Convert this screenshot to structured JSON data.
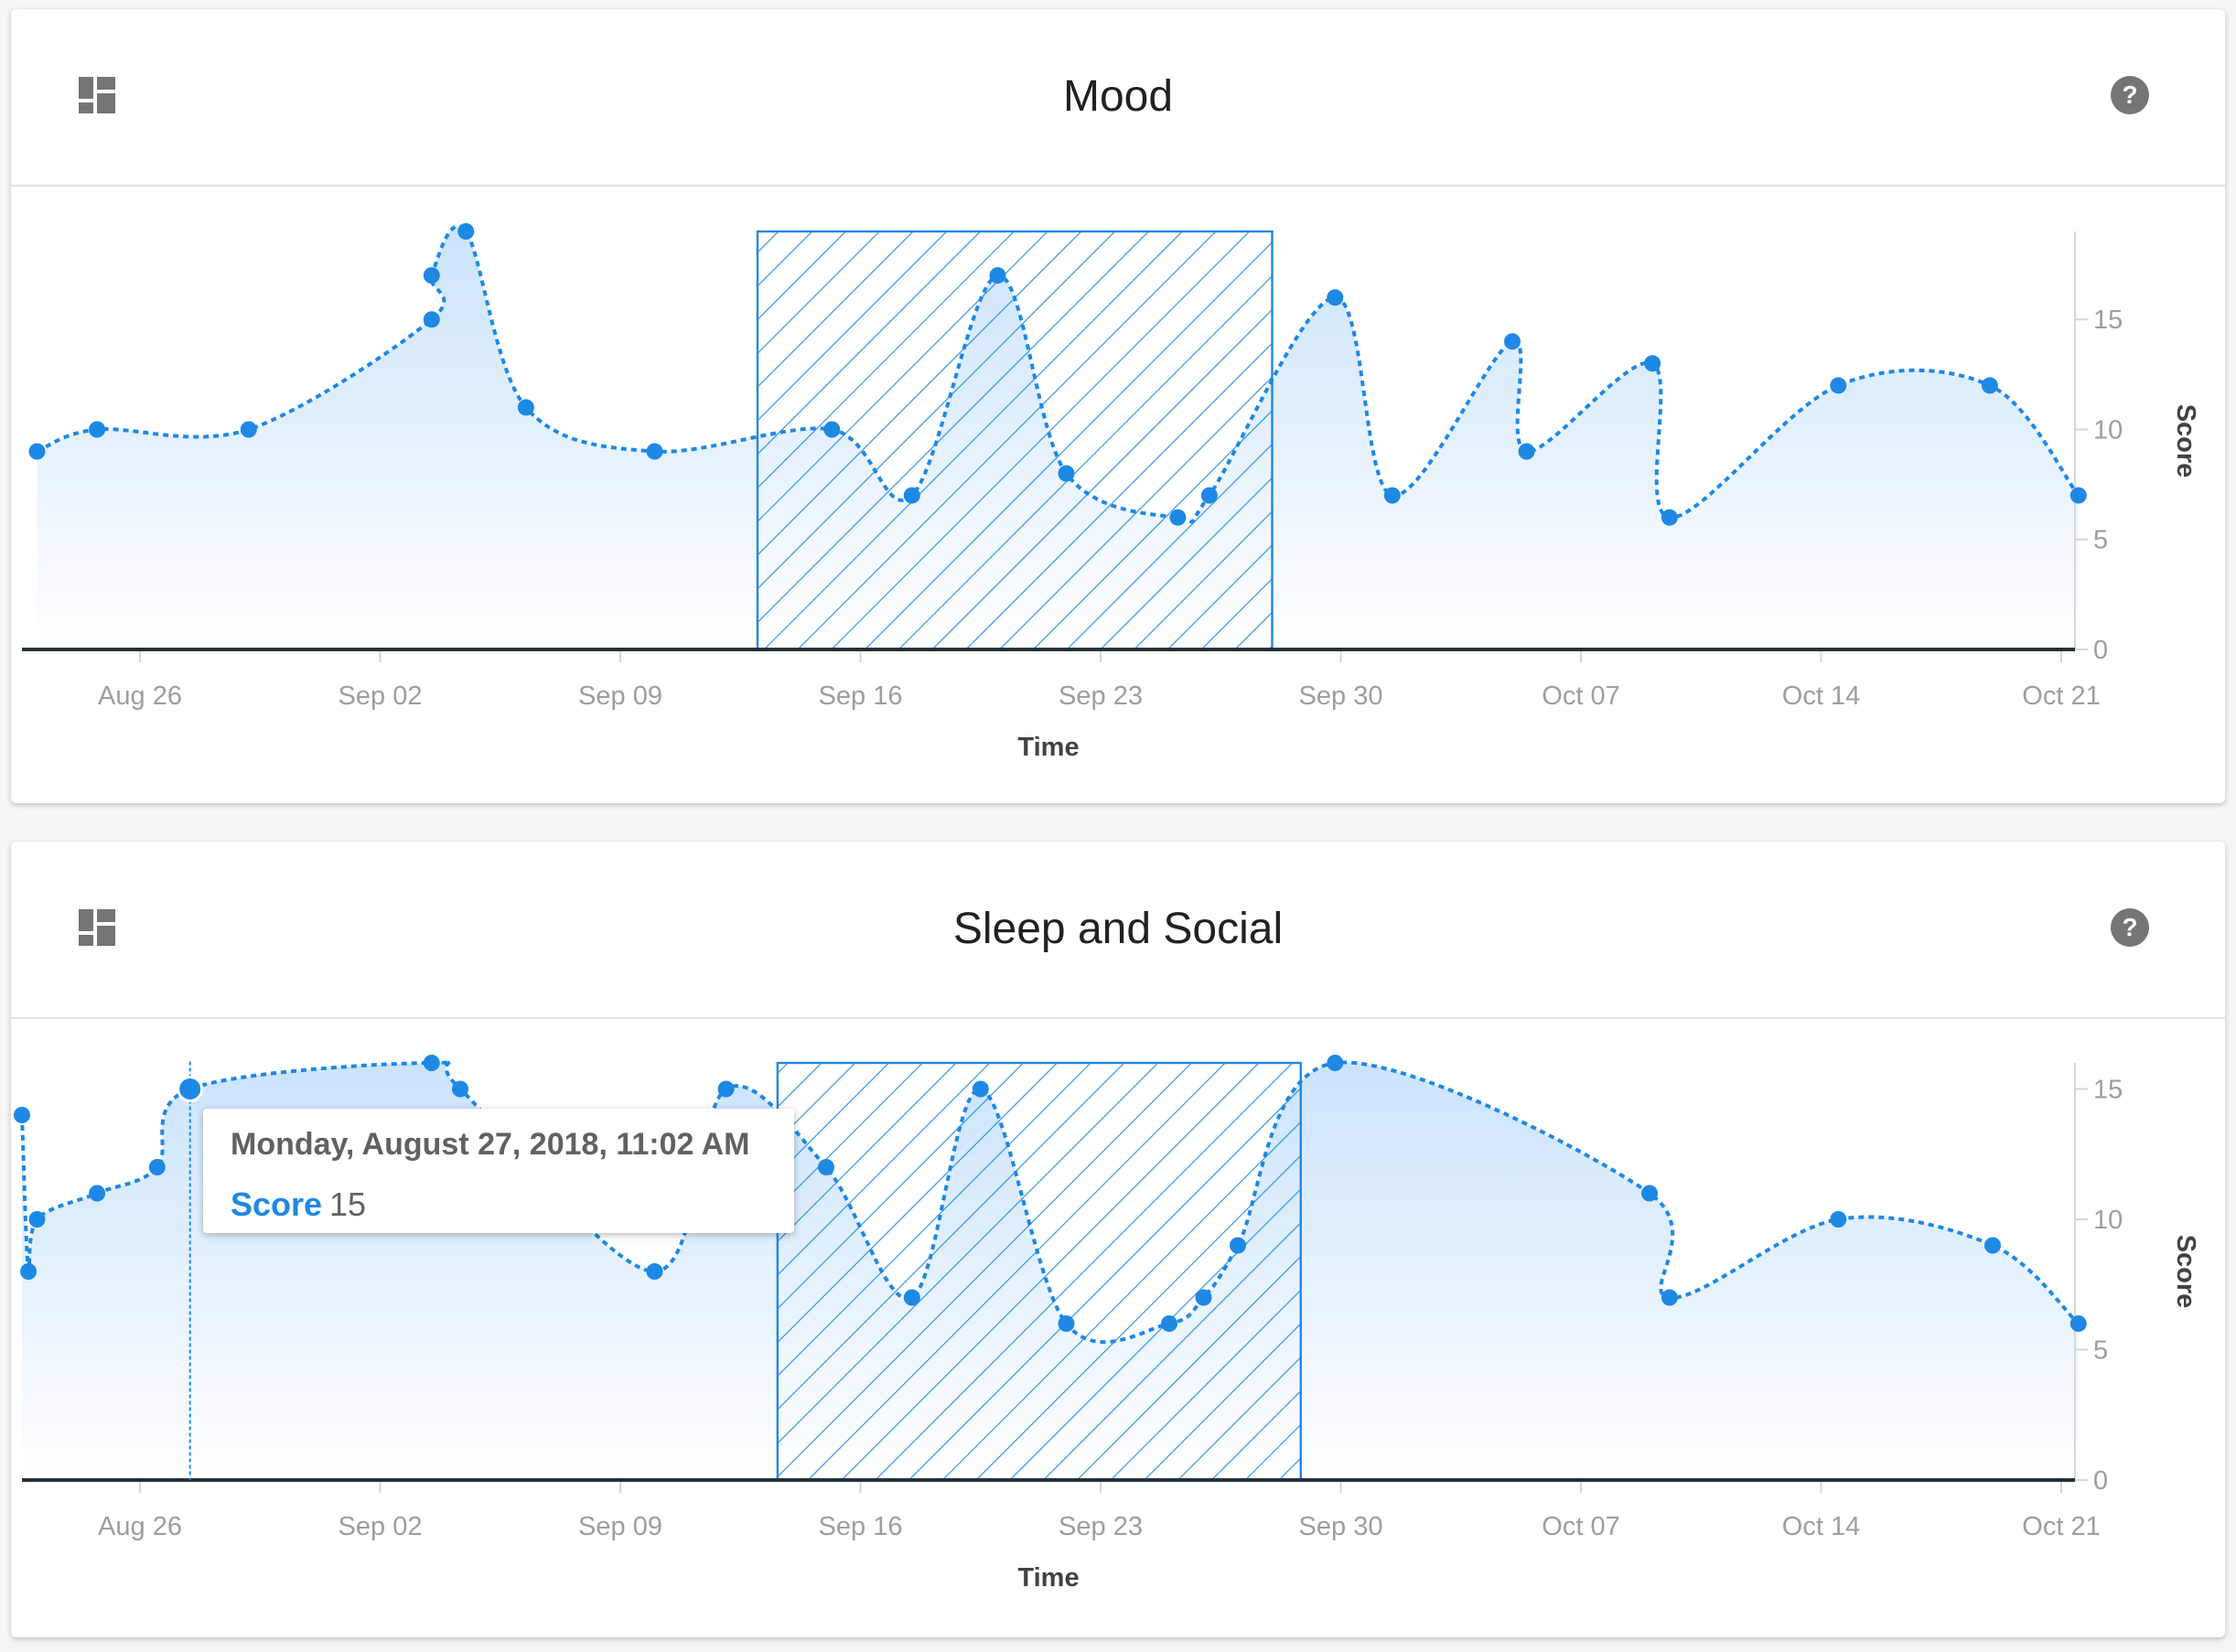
{
  "colors": {
    "accent": "#1e88e5",
    "area_top": "#c8e2fb",
    "area_bottom": "#ffffff",
    "axis_text": "#9e9e9e",
    "axis_title": "#424242",
    "baseline": "#263238"
  },
  "icons": {
    "dashboard": "dashboard-icon",
    "help": "help-circle-icon"
  },
  "cards": [
    {
      "title": "Mood",
      "chart_data": {
        "type": "area",
        "xlabel": "Time",
        "ylabel": "Score",
        "x_ticks": [
          "Aug 26",
          "Sep 02",
          "Sep 09",
          "Sep 16",
          "Sep 23",
          "Sep 30",
          "Oct 07",
          "Oct 14",
          "Oct 21"
        ],
        "y_ticks": [
          0,
          5,
          10,
          15
        ],
        "xlim": [
          "2018-08-22T12:00",
          "2018-10-21T00:00"
        ],
        "ylim": [
          0,
          19
        ],
        "line_style": "dashed",
        "shaded_region": {
          "start": "2018-09-13",
          "end": "2018-09-28"
        },
        "series": [
          {
            "points": [
              {
                "x": "2018-08-23T00:00",
                "y": 9
              },
              {
                "x": "2018-08-24T18:00",
                "y": 10
              },
              {
                "x": "2018-08-29T04:00",
                "y": 10
              },
              {
                "x": "2018-09-03T12:00",
                "y": 15
              },
              {
                "x": "2018-09-03T12:00",
                "y": 17
              },
              {
                "x": "2018-09-04T12:00",
                "y": 19
              },
              {
                "x": "2018-09-06T06:00",
                "y": 11
              },
              {
                "x": "2018-09-10T00:00",
                "y": 9
              },
              {
                "x": "2018-09-15T04:00",
                "y": 10
              },
              {
                "x": "2018-09-17T12:00",
                "y": 7
              },
              {
                "x": "2018-09-20T00:00",
                "y": 17
              },
              {
                "x": "2018-09-22T00:00",
                "y": 8
              },
              {
                "x": "2018-09-25T06:00",
                "y": 6
              },
              {
                "x": "2018-09-26T04:00",
                "y": 7
              },
              {
                "x": "2018-09-29T20:00",
                "y": 16
              },
              {
                "x": "2018-10-01T12:00",
                "y": 7
              },
              {
                "x": "2018-10-05T00:00",
                "y": 14
              },
              {
                "x": "2018-10-05T10:00",
                "y": 9
              },
              {
                "x": "2018-10-09T02:00",
                "y": 13
              },
              {
                "x": "2018-10-09T14:00",
                "y": 6
              },
              {
                "x": "2018-10-14T12:00",
                "y": 12
              },
              {
                "x": "2018-10-18T22:00",
                "y": 12
              },
              {
                "x": "2018-10-21T12:00",
                "y": 7
              }
            ]
          }
        ]
      }
    },
    {
      "title": "Sleep and Social",
      "chart_data": {
        "type": "area",
        "xlabel": "Time",
        "ylabel": "Score",
        "x_ticks": [
          "Aug 26",
          "Sep 02",
          "Sep 09",
          "Sep 16",
          "Sep 23",
          "Sep 30",
          "Oct 07",
          "Oct 14",
          "Oct 21"
        ],
        "y_ticks": [
          0,
          5,
          10,
          15
        ],
        "xlim": [
          "2018-08-22T12:00",
          "2018-10-21T00:00"
        ],
        "ylim": [
          0,
          16
        ],
        "line_style": "dashed",
        "shaded_region": {
          "start": "2018-09-13T14:00",
          "end": "2018-09-28T20:00"
        },
        "series": [
          {
            "points": [
              {
                "x": "2018-08-21T20:00",
                "y": 14
              },
              {
                "x": "2018-08-22T18:00",
                "y": 8
              },
              {
                "x": "2018-08-23T00:00",
                "y": 10
              },
              {
                "x": "2018-08-24T18:00",
                "y": 11
              },
              {
                "x": "2018-08-26T12:00",
                "y": 12
              },
              {
                "x": "2018-08-27T11:02",
                "y": 15
              },
              {
                "x": "2018-09-03T12:00",
                "y": 16
              },
              {
                "x": "2018-09-04T08:00",
                "y": 15
              },
              {
                "x": "2018-09-10T00:00",
                "y": 8
              },
              {
                "x": "2018-09-12T02:00",
                "y": 15
              },
              {
                "x": "2018-09-15T00:00",
                "y": 12
              },
              {
                "x": "2018-09-17T12:00",
                "y": 7
              },
              {
                "x": "2018-09-19T12:00",
                "y": 15
              },
              {
                "x": "2018-09-22T00:00",
                "y": 6
              },
              {
                "x": "2018-09-25T00:00",
                "y": 6
              },
              {
                "x": "2018-09-26T00:00",
                "y": 7
              },
              {
                "x": "2018-09-27T00:00",
                "y": 9
              },
              {
                "x": "2018-09-29T20:00",
                "y": 16
              },
              {
                "x": "2018-10-09T00:00",
                "y": 11
              },
              {
                "x": "2018-10-09T14:00",
                "y": 7
              },
              {
                "x": "2018-10-14T12:00",
                "y": 10
              },
              {
                "x": "2018-10-19T00:00",
                "y": 9
              },
              {
                "x": "2018-10-21T12:00",
                "y": 6
              }
            ]
          }
        ],
        "highlighted_point": {
          "x": "2018-08-27T11:02",
          "y": 15
        }
      }
    }
  ],
  "tooltip": {
    "date": "Monday, August 27, 2018, 11:02 AM",
    "label": "Score",
    "value": "15"
  }
}
